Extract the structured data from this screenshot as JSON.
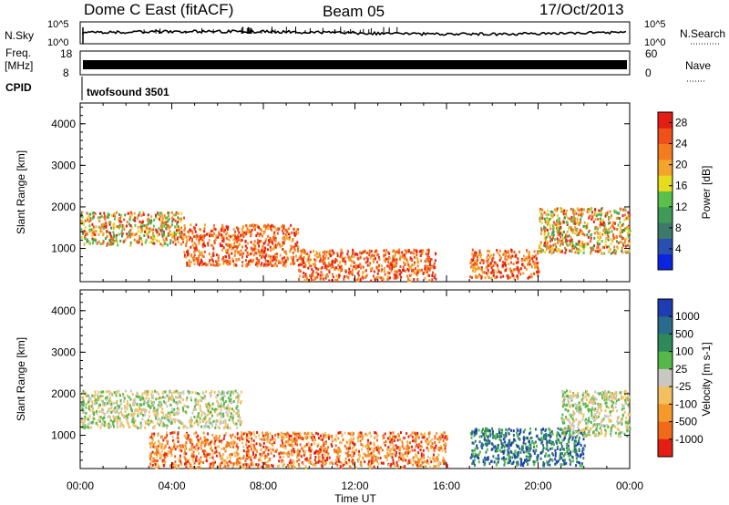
{
  "header": {
    "station": "Dome C East (fitACF)",
    "beam": "Beam 05",
    "date": "17/Oct/2013"
  },
  "status_panel": {
    "nsky_label": "N.Sky",
    "nsky_ticks": [
      "10^5",
      "10^0"
    ],
    "nsearch_label": "N.Search",
    "nsearch_ticks": [
      "10^5",
      "10^0"
    ],
    "freq_label": "Freq.",
    "freq_unit": "[MHz]",
    "freq_ticks": [
      "18",
      "8"
    ],
    "nave_label": "Nave",
    "nave_ticks": [
      "60",
      "0"
    ],
    "cpid_label": "CPID",
    "cpid_value": "twofsound 3501"
  },
  "chart_data": [
    {
      "type": "heatmap",
      "parameter": "Power",
      "ylabel": "Slant Range [km]",
      "xlabel": "",
      "ylim": [
        200,
        4500
      ],
      "y_ticks": [
        "1000",
        "2000",
        "3000",
        "4000"
      ],
      "x_ticks": [
        "00:00",
        "04:00",
        "08:00",
        "12:00",
        "16:00",
        "20:00",
        "00:00"
      ],
      "colorbar": {
        "label": "Power [dB]",
        "ticks": [
          "4",
          "8",
          "12",
          "16",
          "20",
          "24",
          "28"
        ],
        "colors": [
          "#0a24e0",
          "#2a4fb0",
          "#3d7a6a",
          "#3f9a55",
          "#59c14a",
          "#e6dc1e",
          "#f2a52a",
          "#f57c1e",
          "#f0501a",
          "#e41e12"
        ]
      },
      "echo_regions": [
        {
          "t_start": 0.0,
          "t_end": 4.5,
          "r_min": 1100,
          "r_max": 1900,
          "level": "moderate"
        },
        {
          "t_start": 4.5,
          "t_end": 9.5,
          "r_min": 600,
          "r_max": 1600,
          "level": "high"
        },
        {
          "t_start": 9.5,
          "t_end": 15.5,
          "r_min": 250,
          "r_max": 1000,
          "level": "high"
        },
        {
          "t_start": 17.0,
          "t_end": 20.0,
          "r_min": 300,
          "r_max": 1000,
          "level": "high"
        },
        {
          "t_start": 20.0,
          "t_end": 24.0,
          "r_min": 900,
          "r_max": 2000,
          "level": "moderate"
        }
      ]
    },
    {
      "type": "heatmap",
      "parameter": "Velocity",
      "ylabel": "Slant Range [km]",
      "xlabel": "Time UT",
      "ylim": [
        200,
        4500
      ],
      "y_ticks": [
        "1000",
        "2000",
        "3000",
        "4000"
      ],
      "x_ticks": [
        "00:00",
        "04:00",
        "08:00",
        "12:00",
        "16:00",
        "20:00",
        "00:00"
      ],
      "colorbar": {
        "label": "Velocity [m s-1]",
        "ticks": [
          "1000",
          "500",
          "100",
          "25",
          "-25",
          "-100",
          "-500",
          "-1000"
        ],
        "colors": [
          "#1e3cb4",
          "#2a6a8a",
          "#2e8a5a",
          "#55b84a",
          "#c8c8c0",
          "#f2c060",
          "#f59a2a",
          "#f06a1a",
          "#e41e12"
        ]
      },
      "echo_regions": [
        {
          "t_start": 0.0,
          "t_end": 7.0,
          "r_min": 1200,
          "r_max": 2100,
          "level": "near-zero"
        },
        {
          "t_start": 3.0,
          "t_end": 16.0,
          "r_min": 250,
          "r_max": 1100,
          "level": "negative"
        },
        {
          "t_start": 17.0,
          "t_end": 22.0,
          "r_min": 300,
          "r_max": 1200,
          "level": "positive"
        },
        {
          "t_start": 21.0,
          "t_end": 24.0,
          "r_min": 1000,
          "r_max": 2100,
          "level": "near-zero"
        }
      ]
    }
  ]
}
